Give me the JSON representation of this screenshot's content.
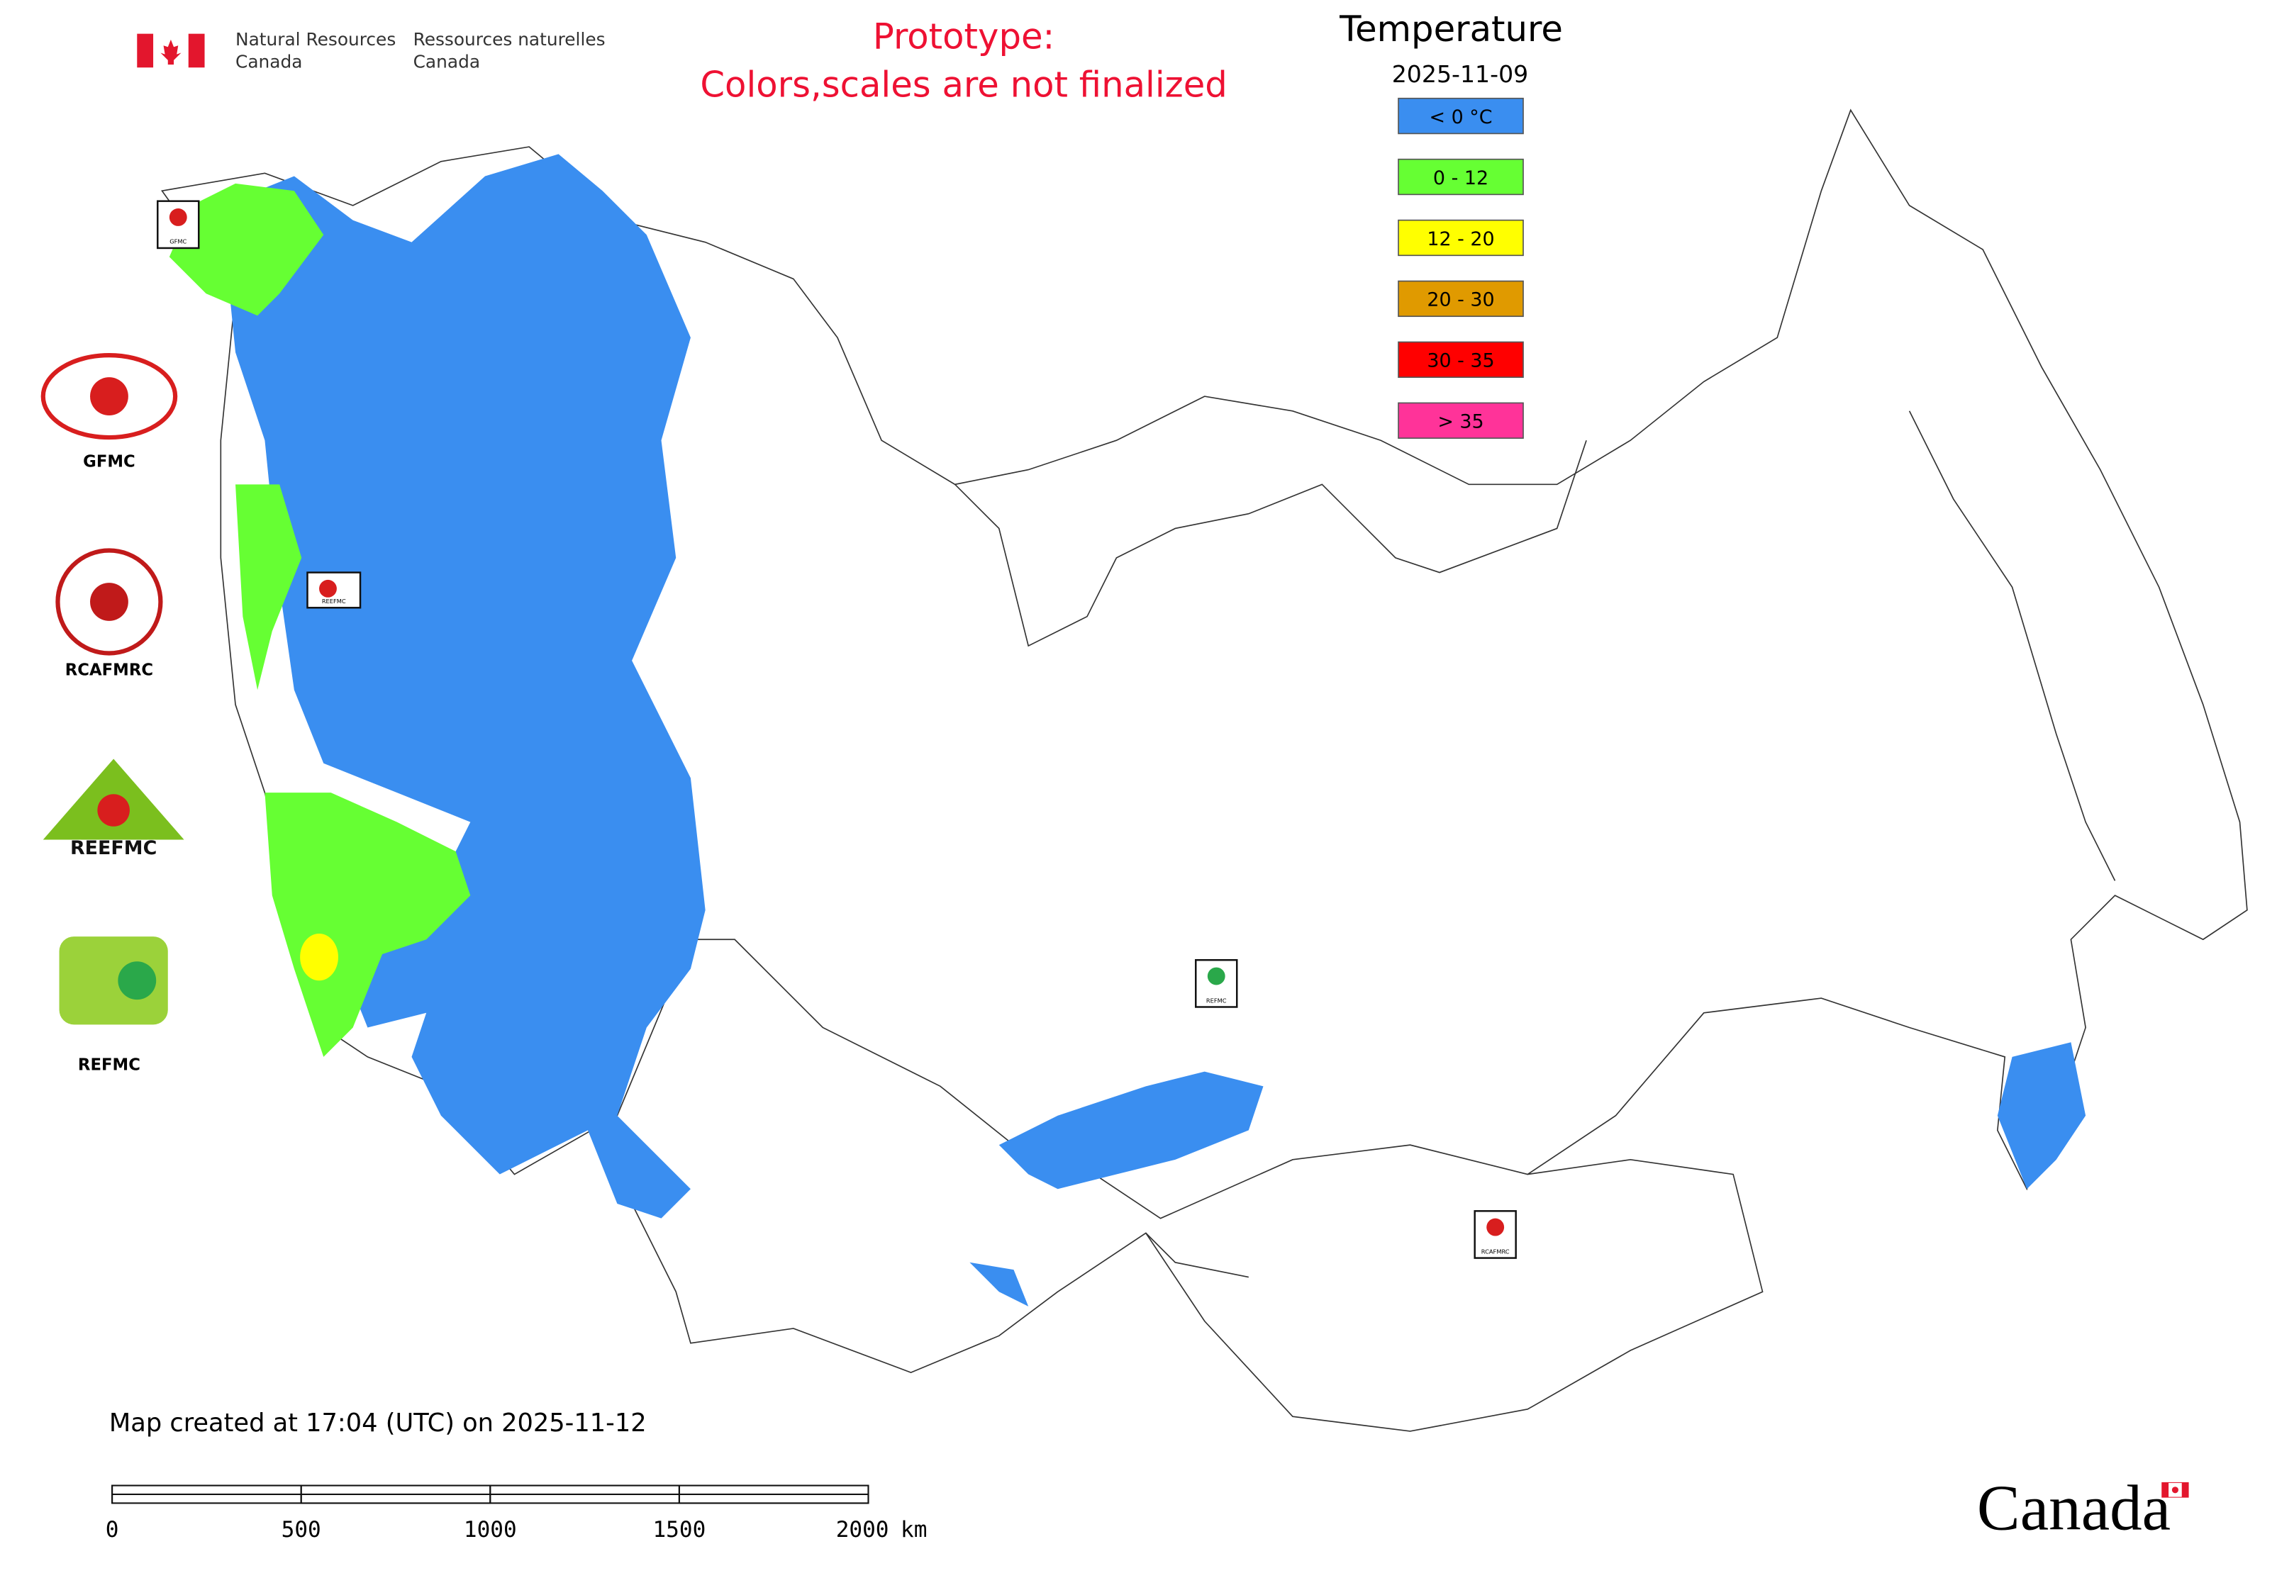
{
  "header": {
    "agency_en": [
      "Natural Resources",
      "Canada"
    ],
    "agency_fr": [
      "Ressources naturelles",
      "Canada"
    ]
  },
  "notice": [
    "Prototype:",
    "Colors,scales are not finalized"
  ],
  "legend": {
    "title": "Temperature",
    "date": "2025-11-09",
    "items": [
      {
        "label": "< 0 °C",
        "color": "#3a8ef0"
      },
      {
        "label": "0 - 12",
        "color": "#66ff33"
      },
      {
        "label": "12 - 20",
        "color": "#ffff00"
      },
      {
        "label": "20 - 30",
        "color": "#e09a00"
      },
      {
        "label": "30 - 35",
        "color": "#ff0000"
      },
      {
        "label": "> 35",
        "color": "#ff3399"
      }
    ]
  },
  "logos": [
    "GFMC",
    "RCAFMRC",
    "REEFMC",
    "REFMC"
  ],
  "map_markers": [
    "GFMC",
    "REEFMC",
    "REFMC",
    "RCAFMRC"
  ],
  "footer": {
    "created": "Map created at 17:04 (UTC) on 2025-11-12",
    "wordmark": "Canada"
  },
  "scale_bar": {
    "ticks": [
      0,
      500,
      1000,
      1500,
      2000
    ],
    "unit": "km"
  }
}
